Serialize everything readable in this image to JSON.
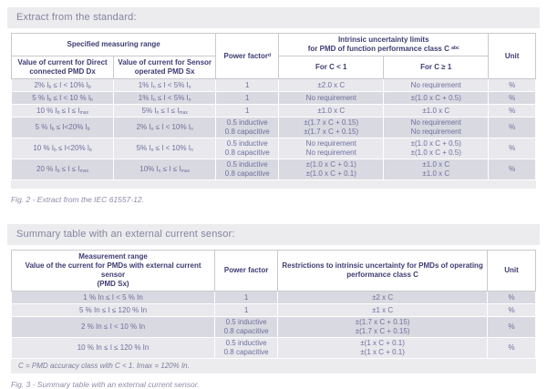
{
  "palette": {
    "header_text": "#3d3c72",
    "body_text": "#6f6f9e",
    "band_bg": "#ececee",
    "stripe_light": "#e8e8ed",
    "stripe_dark": "#d9d9e1"
  },
  "section1": {
    "heading": "Extract from the standard:",
    "caption": "Fig. 2 - Extract from the IEC 61557-12.",
    "table": {
      "group_header": "Specified measuring range",
      "col_dx": "Value of current for Direct\nconnected PMD Dx",
      "col_sx": "Value of current for Sensor\noperated PMD Sx",
      "col_power_factor": "Power factor{^d}",
      "col_limits": "Intrinsic uncertainty limits\nfor PMD of function performance class C {^abc}",
      "col_c_lt_1": "For C < 1",
      "col_c_ge_1": "For C ≥ 1",
      "col_unit": "Unit",
      "rows": [
        {
          "dx": "2% I{b} ≤ I < 10% I{b}",
          "sx": "1% I{n} ≤ I < 5% I{n}",
          "pf": "1",
          "c_lt_1": "±2.0 x C",
          "c_ge_1": "No requirement",
          "unit": "%"
        },
        {
          "dx": "5 % I{b} ≤ I < 10 % I{b}",
          "sx": "1% I{n} ≤ I < 5% I{n}",
          "pf": "1",
          "c_lt_1": "No requirement",
          "c_ge_1": "±(1.0 x C + 0.5)",
          "unit": "%"
        },
        {
          "dx": "10 % I{b} ≤ I ≤ I{max}",
          "sx": "5% I{n} ≤ I ≤ I{max}",
          "pf": "1",
          "c_lt_1": "±1.0 x C",
          "c_ge_1": "±1.0 x C",
          "unit": "%"
        },
        {
          "dx": "5 % I{b} ≤ I<20% I{b}",
          "sx": "2% I{n} ≤ I < 10% I{n}",
          "pf": "0.5 inductive\n0.8 capacitive",
          "c_lt_1": "±(1.7 x C + 0.15)\n±(1.7 x C + 0.15)",
          "c_ge_1": "No requirement\nNo requirement",
          "unit": "%"
        },
        {
          "dx": "10 % I{b} ≤ I<20% I{b}",
          "sx": "5% I{n} ≤ I < 10% I{n}",
          "pf": "0.5 inductive\n0.8 capacitive",
          "c_lt_1": "No requirement\nNo requirement",
          "c_ge_1": "±(1.0 x C + 0.5)\n±(1.0 x C + 0.5)",
          "unit": "%"
        },
        {
          "dx": "20 % I{b} ≤ I ≤ I{max}",
          "sx": "10% I{n} ≤ I ≤ I{max}",
          "pf": "0.5 inductive\n0.8 capacitive",
          "c_lt_1": "±(1.0 x C + 0.1)\n±(1.0 x C + 0.1)",
          "c_ge_1": "±1.0 x C\n±1.0 x C",
          "unit": "%"
        }
      ]
    }
  },
  "section2": {
    "heading": "Summary table with an external current sensor:",
    "caption": "Fig. 3 - Summary table with an external current sensor.",
    "footnote": "C = PMD accuracy class with C < 1. Imax = 120% In.",
    "table": {
      "col_range": "Measurement range\nValue of the current for PMDs with external current sensor\n(PMD Sx)",
      "col_power_factor": "Power factor",
      "col_restrictions": "Restrictions to intrinsic uncertainty for PMDs of operating\nperformance class C",
      "col_unit": "Unit",
      "rows": [
        {
          "range": "1 % In ≤ I < 5 % In",
          "pf": "1",
          "restriction": "±2 x C",
          "unit": "%"
        },
        {
          "range": "5 % In ≤ I ≤ 120 % In",
          "pf": "1",
          "restriction": "±1 x C",
          "unit": "%"
        },
        {
          "range": "2 % In ≤ I < 10 % In",
          "pf": "0.5 inductive\n0.8 capacitive",
          "restriction": "±(1.7 x C + 0.15)\n±(1.7 x C + 0.15)",
          "unit": "%"
        },
        {
          "range": "10 % In ≤ I ≤ 120 % In",
          "pf": "0.5 inductive\n0.8 capacitive",
          "restriction": "±(1 x C + 0.1)\n±(1 x C + 0.1)",
          "unit": "%"
        }
      ]
    }
  }
}
